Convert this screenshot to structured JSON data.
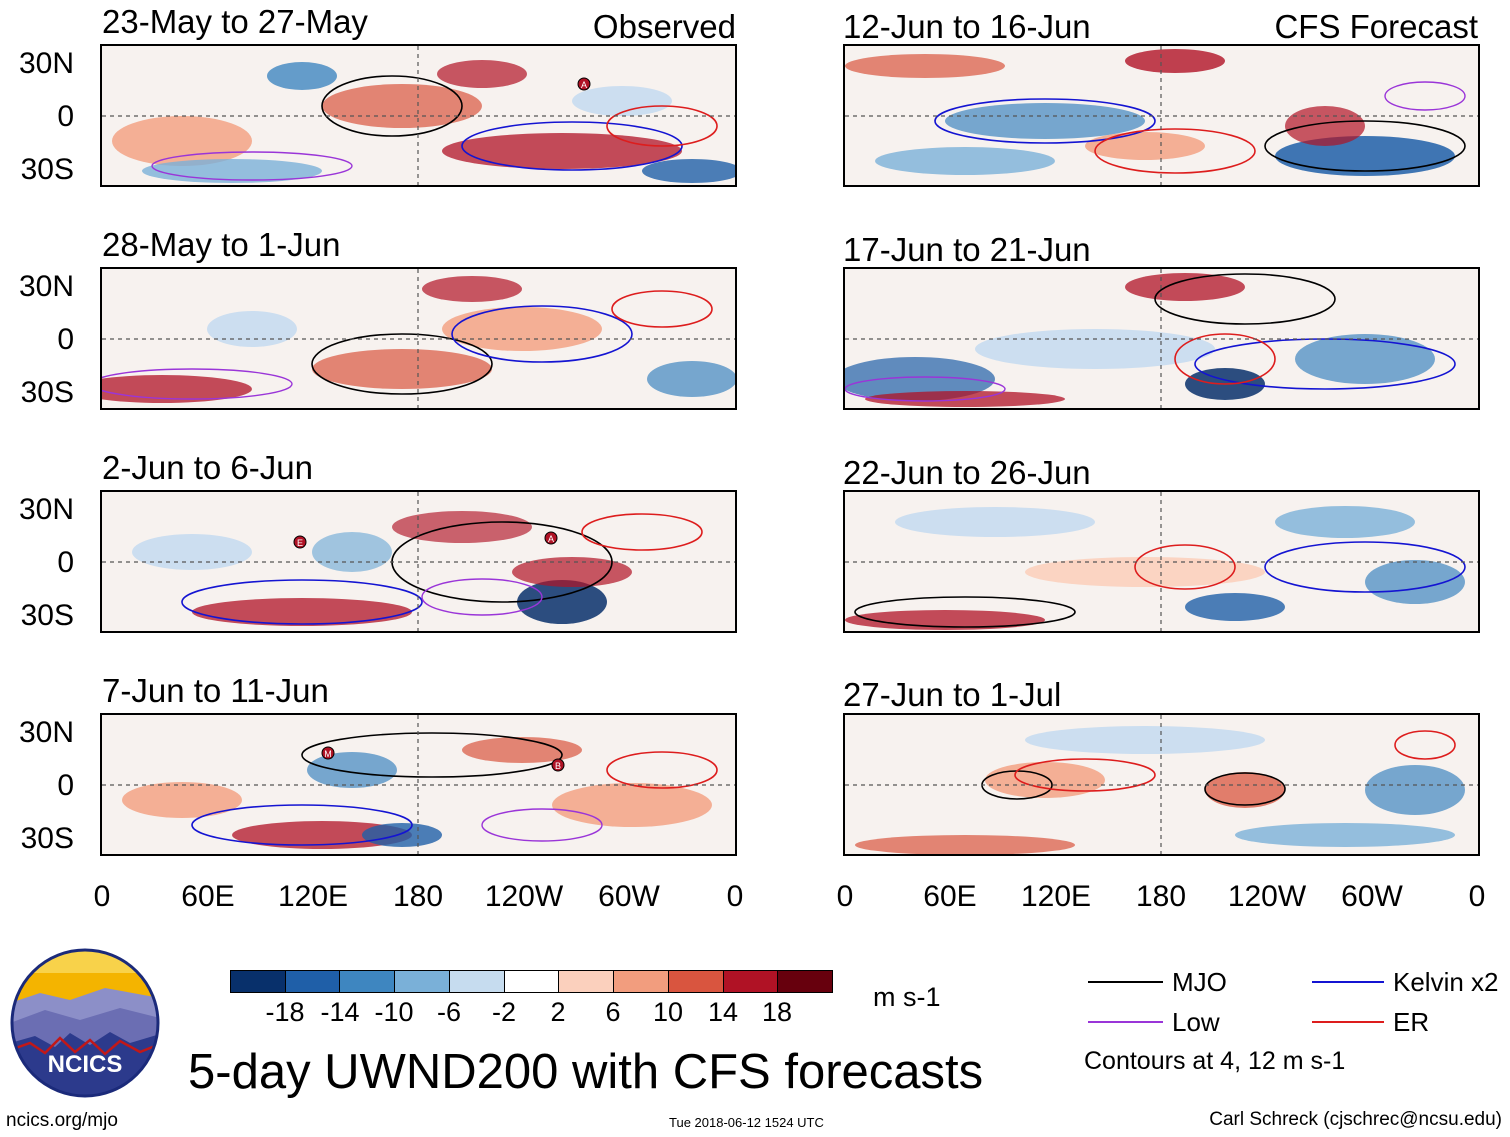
{
  "header": {
    "observed_label": "Observed",
    "forecast_label": "CFS Forecast"
  },
  "panels": {
    "observed": [
      {
        "title": "23-May to 27-May"
      },
      {
        "title": "28-May to 1-Jun"
      },
      {
        "title": "2-Jun to 6-Jun"
      },
      {
        "title": "7-Jun to 11-Jun"
      }
    ],
    "forecast": [
      {
        "title": "12-Jun to 16-Jun"
      },
      {
        "title": "17-Jun to 21-Jun"
      },
      {
        "title": "22-Jun to 26-Jun"
      },
      {
        "title": "27-Jun to 1-Jul"
      }
    ]
  },
  "axes": {
    "lat_labels": [
      "30N",
      "0",
      "30S"
    ],
    "lon_labels": [
      "0",
      "60E",
      "120E",
      "180",
      "120W",
      "60W",
      "0"
    ]
  },
  "markers": {
    "p0": "A",
    "p2a": "E",
    "p2b": "A",
    "p3a": "M",
    "p3b": "B"
  },
  "colorbar": {
    "ticks": [
      "-18",
      "-14",
      "-10",
      "-6",
      "-2",
      "2",
      "6",
      "10",
      "14",
      "18"
    ],
    "units": "m s-1",
    "colors": [
      "#08306b",
      "#1f5fa8",
      "#3e86c0",
      "#7ab0d8",
      "#c6dcef",
      "#ffffff",
      "#fbd0bd",
      "#f29d7e",
      "#d9553f",
      "#b01225",
      "#67000d"
    ]
  },
  "legend": {
    "mjo": "MJO",
    "kelvin": "Kelvin x2",
    "low": "Low",
    "er": "ER",
    "contours_note": "Contours at 4, 12 m s-1",
    "colors": {
      "mjo": "#000000",
      "kelvin": "#1414d2",
      "low": "#9a35d8",
      "er": "#dd1d1d"
    }
  },
  "logo": {
    "text": "NCICS"
  },
  "title": "5-day UWND200 with CFS forecasts",
  "footer": {
    "url": "ncics.org/mjo",
    "timestamp": "Tue 2018-06-12 1524 UTC",
    "author": "Carl Schreck (cjschrec@ncsu.edu)"
  }
}
